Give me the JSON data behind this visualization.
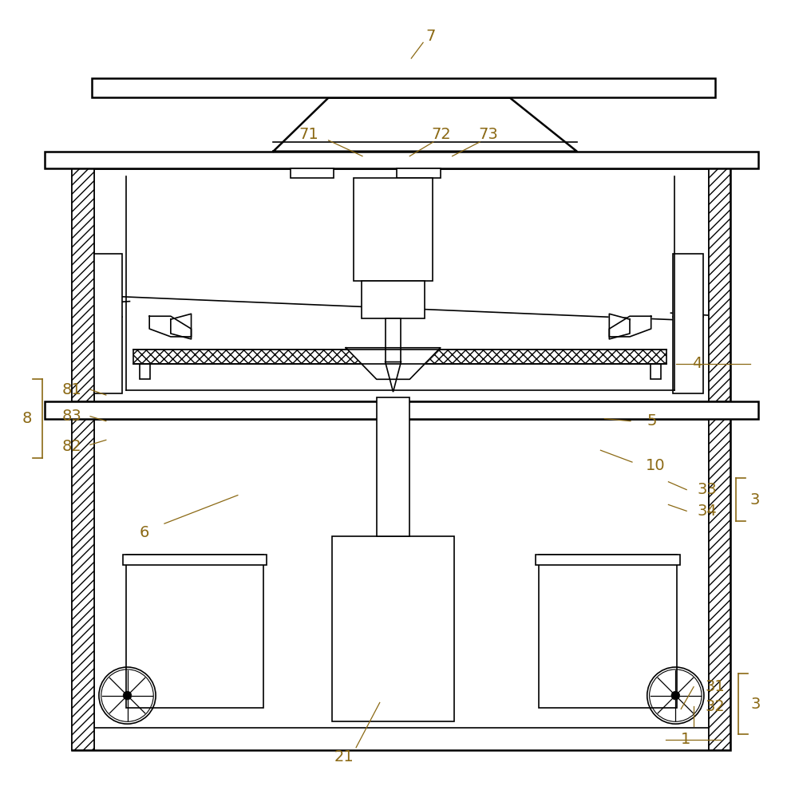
{
  "bg_color": "#ffffff",
  "line_color": "#000000",
  "label_color": "#8B6914",
  "figsize": [
    9.91,
    10.0
  ],
  "dpi": 100
}
